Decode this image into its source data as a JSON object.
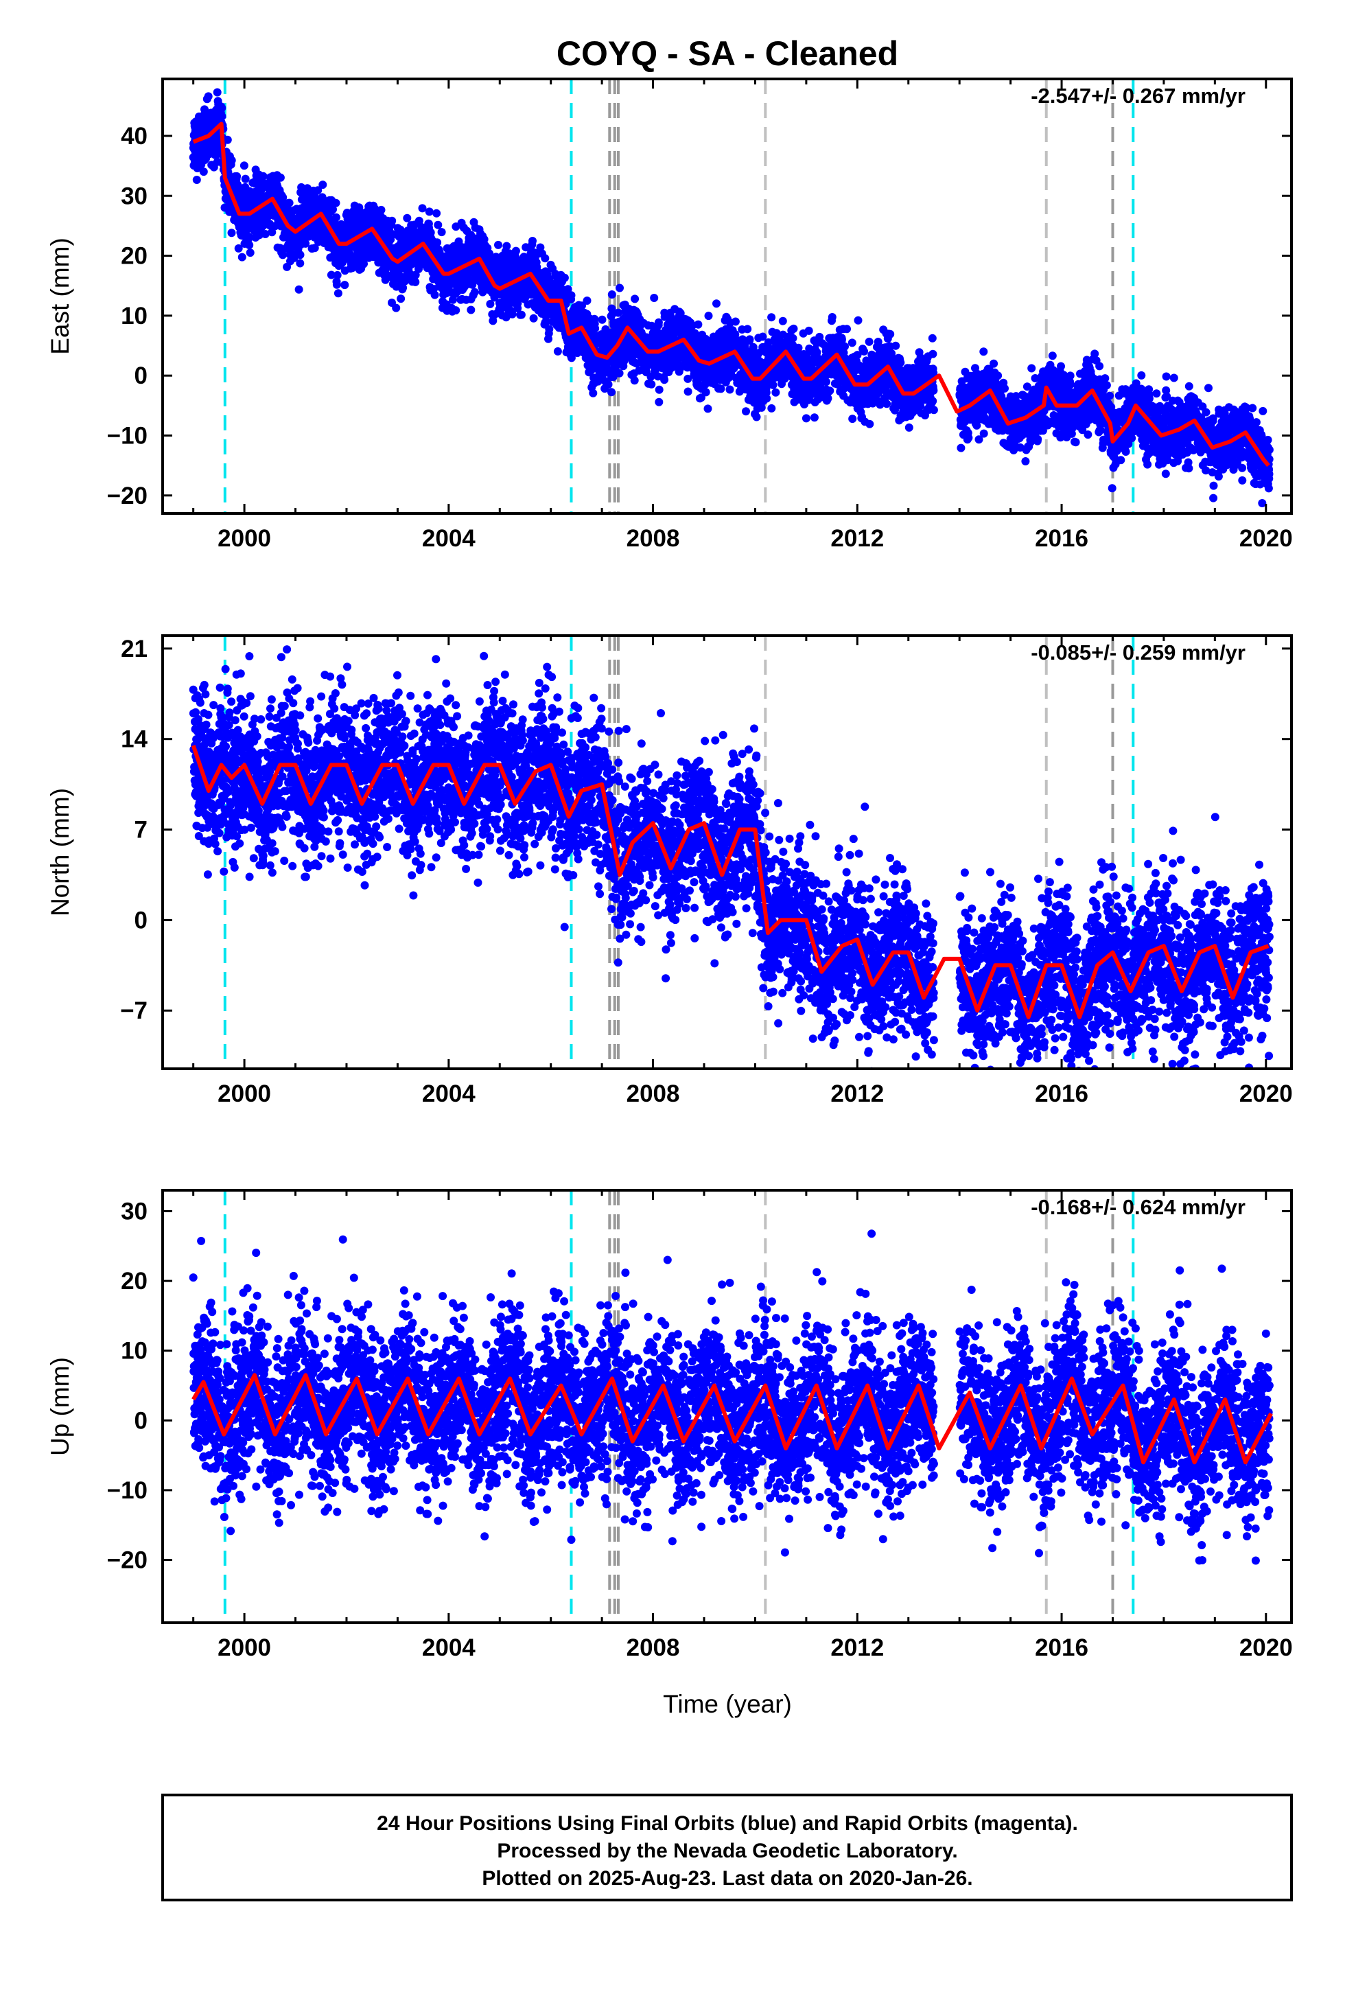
{
  "title": "COYQ  - SA - Cleaned",
  "xlabel": "Time (year)",
  "footer": {
    "line1": "24 Hour Positions Using Final Orbits (blue) and Rapid Orbits (magenta).",
    "line2": "Processed by the Nevada Geodetic Laboratory.",
    "line3": "Plotted on 2025-Aug-23. Last data on 2020-Jan-26."
  },
  "colors": {
    "points": "#0000ff",
    "model": "#ff0000",
    "antenna_change": "#00e5ee",
    "equipment_change": "#c0c0c0",
    "equipment_change_dark": "#999999"
  },
  "chart_data": [
    {
      "type": "scatter",
      "panel": "east",
      "ylabel": "East (mm)",
      "rate": "-2.547+/- 0.267 mm/yr",
      "xlim": [
        1998.4,
        2020.5
      ],
      "ylim": [
        -23,
        49.5
      ],
      "xticks": [
        2000,
        2004,
        2008,
        2012,
        2016,
        2020
      ],
      "yticks": [
        -20,
        -10,
        0,
        10,
        20,
        30,
        40
      ],
      "model_points": [
        [
          1999.0,
          39
        ],
        [
          1999.3,
          40
        ],
        [
          1999.55,
          42
        ],
        [
          1999.62,
          33
        ],
        [
          1999.9,
          27
        ],
        [
          2000.1,
          27
        ],
        [
          2000.55,
          29.5
        ],
        [
          2000.85,
          25
        ],
        [
          2001.0,
          24
        ],
        [
          2001.5,
          27
        ],
        [
          2001.85,
          22
        ],
        [
          2002.0,
          22
        ],
        [
          2002.5,
          24.5
        ],
        [
          2002.9,
          19.5
        ],
        [
          2003.0,
          19
        ],
        [
          2003.5,
          22
        ],
        [
          2003.9,
          17
        ],
        [
          2004.0,
          17
        ],
        [
          2004.6,
          19.5
        ],
        [
          2004.9,
          15
        ],
        [
          2005.0,
          14.5
        ],
        [
          2005.6,
          17
        ],
        [
          2005.95,
          12.5
        ],
        [
          2006.2,
          12.5
        ],
        [
          2006.35,
          7
        ],
        [
          2006.6,
          8
        ],
        [
          2006.9,
          3.5
        ],
        [
          2007.1,
          3
        ],
        [
          2007.3,
          5
        ],
        [
          2007.5,
          8
        ],
        [
          2007.9,
          4
        ],
        [
          2008.1,
          4
        ],
        [
          2008.6,
          6
        ],
        [
          2008.9,
          2.5
        ],
        [
          2009.1,
          2
        ],
        [
          2009.6,
          4
        ],
        [
          2009.95,
          -0.5
        ],
        [
          2010.1,
          -0.5
        ],
        [
          2010.6,
          4
        ],
        [
          2010.95,
          -0.5
        ],
        [
          2011.1,
          -0.5
        ],
        [
          2011.6,
          3.5
        ],
        [
          2011.95,
          -1.5
        ],
        [
          2012.2,
          -1.5
        ],
        [
          2012.6,
          1.5
        ],
        [
          2012.9,
          -3
        ],
        [
          2013.1,
          -3
        ],
        [
          2013.6,
          0
        ],
        [
          2013.95,
          -6
        ],
        [
          2014.2,
          -5
        ],
        [
          2014.6,
          -2.5
        ],
        [
          2014.95,
          -8
        ],
        [
          2015.3,
          -7
        ],
        [
          2015.65,
          -5
        ],
        [
          2015.7,
          -2
        ],
        [
          2015.9,
          -5
        ],
        [
          2016.3,
          -5
        ],
        [
          2016.6,
          -2.5
        ],
        [
          2016.95,
          -8
        ],
        [
          2017.0,
          -11
        ],
        [
          2017.3,
          -8
        ],
        [
          2017.45,
          -5
        ],
        [
          2017.95,
          -10
        ],
        [
          2018.3,
          -9
        ],
        [
          2018.6,
          -7.5
        ],
        [
          2018.95,
          -12
        ],
        [
          2019.3,
          -11
        ],
        [
          2019.6,
          -9.5
        ],
        [
          2019.95,
          -14
        ],
        [
          2020.05,
          -15
        ]
      ],
      "scatter_sigma": 2.5
    },
    {
      "type": "scatter",
      "panel": "north",
      "ylabel": "North (mm)",
      "rate": "-0.085+/- 0.259 mm/yr",
      "xlim": [
        1998.4,
        2020.5
      ],
      "ylim": [
        -11.5,
        22
      ],
      "xticks": [
        2000,
        2004,
        2008,
        2012,
        2016,
        2020
      ],
      "yticks": [
        -7,
        0,
        7,
        14,
        21
      ],
      "model_points": [
        [
          1999.0,
          13.5
        ],
        [
          1999.3,
          10
        ],
        [
          1999.55,
          12
        ],
        [
          1999.75,
          11
        ],
        [
          2000.0,
          12
        ],
        [
          2000.35,
          9
        ],
        [
          2000.7,
          12
        ],
        [
          2001.0,
          12
        ],
        [
          2001.3,
          9
        ],
        [
          2001.7,
          12
        ],
        [
          2002.0,
          12
        ],
        [
          2002.3,
          9
        ],
        [
          2002.7,
          12
        ],
        [
          2003.0,
          12
        ],
        [
          2003.3,
          9
        ],
        [
          2003.7,
          12
        ],
        [
          2004.0,
          12
        ],
        [
          2004.3,
          9
        ],
        [
          2004.7,
          12
        ],
        [
          2005.0,
          12
        ],
        [
          2005.3,
          9
        ],
        [
          2005.7,
          11.5
        ],
        [
          2006.0,
          12
        ],
        [
          2006.35,
          8
        ],
        [
          2006.6,
          10
        ],
        [
          2007.0,
          10.5
        ],
        [
          2007.35,
          3.5
        ],
        [
          2007.6,
          6
        ],
        [
          2008.0,
          7.5
        ],
        [
          2008.35,
          4
        ],
        [
          2008.7,
          7
        ],
        [
          2009.0,
          7.5
        ],
        [
          2009.35,
          3.5
        ],
        [
          2009.7,
          7
        ],
        [
          2010.0,
          7
        ],
        [
          2010.25,
          -1
        ],
        [
          2010.5,
          0
        ],
        [
          2011.0,
          0
        ],
        [
          2011.3,
          -4
        ],
        [
          2011.7,
          -2
        ],
        [
          2012.0,
          -1.5
        ],
        [
          2012.3,
          -5
        ],
        [
          2012.7,
          -2.5
        ],
        [
          2013.0,
          -2.5
        ],
        [
          2013.3,
          -6
        ],
        [
          2013.7,
          -3
        ],
        [
          2014.0,
          -3
        ],
        [
          2014.35,
          -7
        ],
        [
          2014.7,
          -3.5
        ],
        [
          2015.0,
          -3.5
        ],
        [
          2015.35,
          -7.5
        ],
        [
          2015.7,
          -3.5
        ],
        [
          2016.0,
          -3.5
        ],
        [
          2016.35,
          -7.5
        ],
        [
          2016.7,
          -3.5
        ],
        [
          2017.0,
          -2.5
        ],
        [
          2017.35,
          -5.5
        ],
        [
          2017.7,
          -2.5
        ],
        [
          2018.0,
          -2
        ],
        [
          2018.35,
          -5.5
        ],
        [
          2018.7,
          -2.5
        ],
        [
          2019.0,
          -2
        ],
        [
          2019.35,
          -6
        ],
        [
          2019.7,
          -2.5
        ],
        [
          2020.05,
          -2
        ]
      ],
      "scatter_sigma": 2.8
    },
    {
      "type": "scatter",
      "panel": "up",
      "ylabel": "Up (mm)",
      "rate": "-0.168+/- 0.624 mm/yr",
      "xlim": [
        1998.4,
        2020.5
      ],
      "ylim": [
        -29,
        33
      ],
      "xticks": [
        2000,
        2004,
        2008,
        2012,
        2016,
        2020
      ],
      "yticks": [
        -20,
        -10,
        0,
        10,
        20,
        30
      ],
      "model_points": [
        [
          1999.0,
          3
        ],
        [
          1999.2,
          5.5
        ],
        [
          1999.6,
          -2
        ],
        [
          2000.2,
          6.5
        ],
        [
          2000.6,
          -2
        ],
        [
          2001.2,
          6.5
        ],
        [
          2001.6,
          -2
        ],
        [
          2002.2,
          6
        ],
        [
          2002.6,
          -2
        ],
        [
          2003.2,
          6
        ],
        [
          2003.6,
          -2
        ],
        [
          2004.2,
          6
        ],
        [
          2004.6,
          -2
        ],
        [
          2005.2,
          6
        ],
        [
          2005.6,
          -2
        ],
        [
          2006.2,
          5
        ],
        [
          2006.6,
          -2
        ],
        [
          2007.2,
          6
        ],
        [
          2007.6,
          -3
        ],
        [
          2008.2,
          5
        ],
        [
          2008.6,
          -3
        ],
        [
          2009.2,
          5
        ],
        [
          2009.6,
          -3
        ],
        [
          2010.2,
          5
        ],
        [
          2010.6,
          -4
        ],
        [
          2011.2,
          5
        ],
        [
          2011.6,
          -4
        ],
        [
          2012.2,
          5
        ],
        [
          2012.6,
          -4
        ],
        [
          2013.2,
          5
        ],
        [
          2013.6,
          -4
        ],
        [
          2014.2,
          4
        ],
        [
          2014.6,
          -4
        ],
        [
          2015.2,
          5
        ],
        [
          2015.6,
          -4
        ],
        [
          2016.2,
          6
        ],
        [
          2016.6,
          -2
        ],
        [
          2017.2,
          5
        ],
        [
          2017.6,
          -6
        ],
        [
          2018.2,
          3
        ],
        [
          2018.6,
          -6
        ],
        [
          2019.2,
          3
        ],
        [
          2019.6,
          -6
        ],
        [
          2020.1,
          1
        ]
      ],
      "scatter_sigma": 5.5
    }
  ],
  "events": {
    "antenna_change_years": [
      1999.62,
      2006.4,
      2017.4
    ],
    "equipment_change_years": [
      2007.15,
      2007.25,
      2007.32,
      2010.2,
      2015.7,
      2017.0
    ]
  },
  "data_span": [
    1999.0,
    2020.07
  ],
  "data_gaps": [
    [
      2013.5,
      2014.0
    ]
  ]
}
